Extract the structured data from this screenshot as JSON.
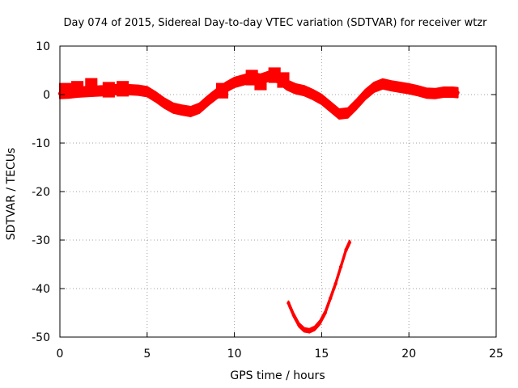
{
  "chart_data": {
    "type": "scatter",
    "title": "Day 074 of 2015, Sidereal Day-to-day VTEC variation (SDTVAR) for receiver wtzr",
    "xlabel": "GPS time / hours",
    "ylabel": "SDTVAR / TECUs",
    "xlim": [
      0,
      25
    ],
    "ylim": [
      -50,
      10
    ],
    "xticks": [
      0,
      5,
      10,
      15,
      20,
      25
    ],
    "yticks": [
      -50,
      -40,
      -30,
      -20,
      -10,
      0,
      10
    ],
    "grid": true,
    "legend": "none",
    "series": [
      {
        "name": "main-track",
        "color": "#ff0000",
        "band_halfwidth": 1.0,
        "x": [
          0.0,
          0.5,
          1.0,
          1.5,
          2.0,
          2.5,
          3.0,
          3.5,
          4.0,
          4.5,
          5.0,
          5.5,
          6.0,
          6.5,
          7.0,
          7.5,
          8.0,
          8.5,
          9.0,
          9.5,
          10.0,
          10.5,
          11.0,
          11.5,
          12.0,
          12.5,
          13.0,
          13.5,
          14.0,
          14.5,
          15.0,
          15.5,
          16.0,
          16.5,
          17.0,
          17.5,
          18.0,
          18.5,
          19.0,
          19.5,
          20.0,
          20.5,
          21.0,
          21.5,
          22.0,
          22.5,
          22.8
        ],
        "y": [
          0.2,
          0.3,
          0.5,
          0.6,
          0.7,
          0.8,
          1.0,
          1.0,
          1.0,
          0.9,
          0.6,
          -0.5,
          -1.8,
          -2.8,
          -3.2,
          -3.5,
          -2.8,
          -1.2,
          0.2,
          1.5,
          2.5,
          3.0,
          3.5,
          3.2,
          3.8,
          3.5,
          2.0,
          1.2,
          0.8,
          0.0,
          -1.0,
          -2.5,
          -4.0,
          -3.8,
          -2.0,
          0.0,
          1.5,
          2.2,
          1.8,
          1.5,
          1.2,
          0.8,
          0.3,
          0.2,
          0.5,
          0.5,
          0.4
        ]
      },
      {
        "name": "dip-track",
        "color": "#ff0000",
        "band_halfwidth": 0.4,
        "x": [
          13.1,
          13.4,
          13.7,
          14.0,
          14.3,
          14.6,
          14.9,
          15.2,
          15.5,
          15.8,
          16.1,
          16.4,
          16.6
        ],
        "y": [
          -43.0,
          -45.5,
          -47.5,
          -48.5,
          -48.7,
          -48.2,
          -47.0,
          -45.0,
          -42.0,
          -39.0,
          -35.5,
          -32.0,
          -30.5
        ]
      },
      {
        "name": "scatter-blobs",
        "color": "#ff0000",
        "band_halfwidth": 1.6,
        "x": [
          0.3,
          1.0,
          1.8,
          2.8,
          3.6,
          9.3,
          11.0,
          11.5,
          12.3,
          12.8
        ],
        "y": [
          0.8,
          1.2,
          1.8,
          1.0,
          1.2,
          0.8,
          3.5,
          2.5,
          4.0,
          3.0
        ]
      }
    ]
  }
}
